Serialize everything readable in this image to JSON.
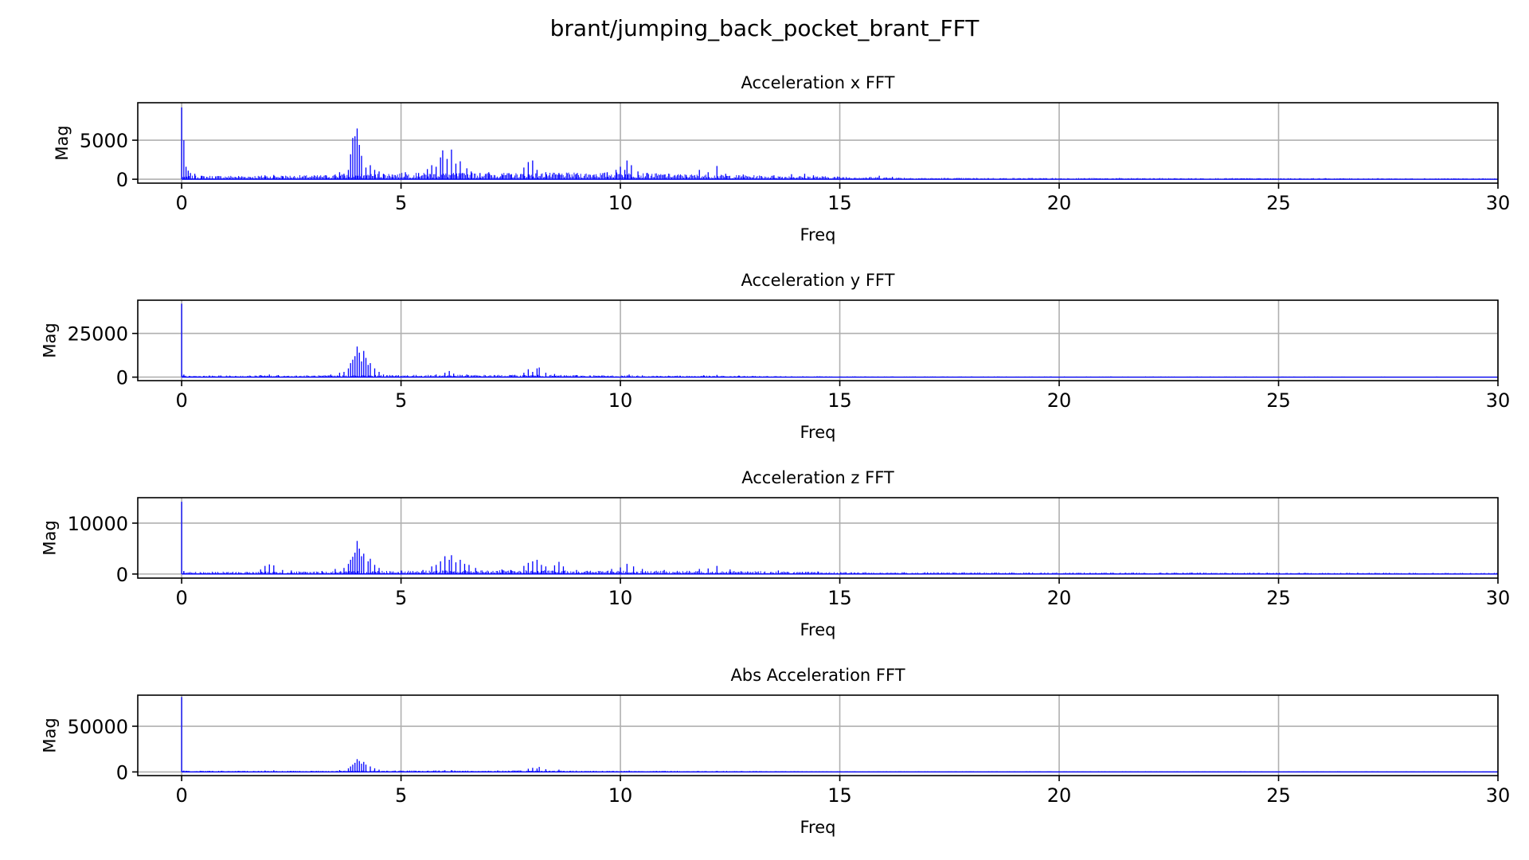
{
  "figure": {
    "suptitle": "brant/jumping_back_pocket_brant_FFT"
  },
  "style": {
    "bar_color": "#0000ff",
    "grid_color": "#b0b0b0",
    "axes_color": "#000000"
  },
  "chart_data": [
    {
      "type": "bar",
      "title": "Acceleration x FFT",
      "xlabel": "Freq",
      "ylabel": "Mag",
      "xlim": [
        -1,
        30
      ],
      "ylim": [
        -500,
        9800
      ],
      "xticks": [
        0,
        5,
        10,
        15,
        20,
        25,
        30
      ],
      "yticks": [
        0,
        5000
      ],
      "grid": true,
      "peaks": [
        [
          0.0,
          9200
        ],
        [
          0.05,
          5000
        ],
        [
          0.1,
          1600
        ],
        [
          0.15,
          1100
        ],
        [
          0.2,
          800
        ],
        [
          0.3,
          700
        ],
        [
          0.45,
          450
        ],
        [
          1.9,
          500
        ],
        [
          2.1,
          550
        ],
        [
          2.3,
          420
        ],
        [
          3.3,
          450
        ],
        [
          3.5,
          600
        ],
        [
          3.6,
          900
        ],
        [
          3.7,
          700
        ],
        [
          3.8,
          1200
        ],
        [
          3.85,
          3200
        ],
        [
          3.9,
          5300
        ],
        [
          3.95,
          5500
        ],
        [
          4.0,
          6500
        ],
        [
          4.05,
          4400
        ],
        [
          4.1,
          3000
        ],
        [
          4.2,
          1500
        ],
        [
          4.3,
          1800
        ],
        [
          4.4,
          1200
        ],
        [
          4.5,
          1000
        ],
        [
          4.6,
          700
        ],
        [
          4.8,
          600
        ],
        [
          5.1,
          900
        ],
        [
          5.4,
          800
        ],
        [
          5.6,
          1300
        ],
        [
          5.7,
          1800
        ],
        [
          5.8,
          1600
        ],
        [
          5.9,
          2800
        ],
        [
          5.95,
          3700
        ],
        [
          6.05,
          2600
        ],
        [
          6.15,
          3800
        ],
        [
          6.25,
          2000
        ],
        [
          6.35,
          2300
        ],
        [
          6.5,
          1400
        ],
        [
          6.6,
          1000
        ],
        [
          6.8,
          800
        ],
        [
          7.0,
          900
        ],
        [
          7.3,
          700
        ],
        [
          7.5,
          600
        ],
        [
          7.8,
          1500
        ],
        [
          7.9,
          2200
        ],
        [
          8.0,
          2400
        ],
        [
          8.1,
          1200
        ],
        [
          8.3,
          900
        ],
        [
          8.6,
          800
        ],
        [
          9.0,
          700
        ],
        [
          9.4,
          600
        ],
        [
          9.7,
          900
        ],
        [
          9.9,
          1200
        ],
        [
          10.0,
          1600
        ],
        [
          10.1,
          1200
        ],
        [
          10.15,
          2400
        ],
        [
          10.25,
          1800
        ],
        [
          10.4,
          1000
        ],
        [
          10.6,
          800
        ],
        [
          11.0,
          600
        ],
        [
          11.5,
          550
        ],
        [
          11.8,
          1200
        ],
        [
          12.0,
          900
        ],
        [
          12.2,
          1700
        ],
        [
          12.4,
          700
        ],
        [
          12.8,
          600
        ],
        [
          13.5,
          500
        ],
        [
          13.9,
          650
        ],
        [
          14.2,
          700
        ],
        [
          14.4,
          500
        ],
        [
          15.9,
          450
        ],
        [
          16.2,
          300
        ]
      ],
      "noise_floor": [
        [
          0,
          300
        ],
        [
          3,
          350
        ],
        [
          5,
          550
        ],
        [
          8,
          550
        ],
        [
          10,
          600
        ],
        [
          12,
          400
        ],
        [
          15,
          250
        ],
        [
          17,
          120
        ],
        [
          30,
          80
        ]
      ]
    },
    {
      "type": "bar",
      "title": "Acceleration y FFT",
      "xlabel": "Freq",
      "ylabel": "Mag",
      "xlim": [
        -1,
        30
      ],
      "ylim": [
        -2000,
        44000
      ],
      "xticks": [
        0,
        5,
        10,
        15,
        20,
        25,
        30
      ],
      "yticks": [
        0,
        25000
      ],
      "grid": true,
      "peaks": [
        [
          0.0,
          42000
        ],
        [
          0.05,
          1500
        ],
        [
          1.8,
          1200
        ],
        [
          2.0,
          1500
        ],
        [
          2.2,
          1200
        ],
        [
          3.4,
          1500
        ],
        [
          3.6,
          2500
        ],
        [
          3.7,
          3000
        ],
        [
          3.8,
          5000
        ],
        [
          3.85,
          8000
        ],
        [
          3.9,
          10000
        ],
        [
          3.95,
          12000
        ],
        [
          4.0,
          17500
        ],
        [
          4.05,
          14000
        ],
        [
          4.1,
          9000
        ],
        [
          4.15,
          15000
        ],
        [
          4.2,
          11000
        ],
        [
          4.25,
          7000
        ],
        [
          4.3,
          8000
        ],
        [
          4.4,
          5000
        ],
        [
          4.5,
          3000
        ],
        [
          4.6,
          1500
        ],
        [
          5.8,
          1500
        ],
        [
          6.0,
          2500
        ],
        [
          6.1,
          3500
        ],
        [
          6.2,
          2000
        ],
        [
          6.5,
          1500
        ],
        [
          7.5,
          1200
        ],
        [
          7.8,
          2500
        ],
        [
          7.9,
          4500
        ],
        [
          8.0,
          3000
        ],
        [
          8.1,
          5000
        ],
        [
          8.15,
          5500
        ],
        [
          8.3,
          2500
        ],
        [
          8.5,
          1800
        ],
        [
          9.0,
          1200
        ],
        [
          10.2,
          1500
        ],
        [
          10.5,
          1000
        ],
        [
          11.9,
          1100
        ],
        [
          12.2,
          1300
        ],
        [
          12.7,
          900
        ]
      ],
      "noise_floor": [
        [
          0,
          600
        ],
        [
          3,
          700
        ],
        [
          5,
          900
        ],
        [
          8,
          900
        ],
        [
          10,
          700
        ],
        [
          13,
          500
        ],
        [
          15,
          300
        ],
        [
          30,
          200
        ]
      ]
    },
    {
      "type": "bar",
      "title": "Acceleration z FFT",
      "xlabel": "Freq",
      "ylabel": "Mag",
      "xlim": [
        -1,
        30
      ],
      "ylim": [
        -800,
        15000
      ],
      "xticks": [
        0,
        5,
        10,
        15,
        20,
        25,
        30
      ],
      "yticks": [
        0,
        10000
      ],
      "grid": true,
      "peaks": [
        [
          0.0,
          14200
        ],
        [
          0.05,
          600
        ],
        [
          1.8,
          900
        ],
        [
          1.9,
          1600
        ],
        [
          2.0,
          1900
        ],
        [
          2.1,
          1700
        ],
        [
          2.3,
          800
        ],
        [
          2.5,
          700
        ],
        [
          3.2,
          600
        ],
        [
          3.5,
          1000
        ],
        [
          3.7,
          1200
        ],
        [
          3.8,
          2000
        ],
        [
          3.85,
          2800
        ],
        [
          3.9,
          3400
        ],
        [
          3.95,
          4200
        ],
        [
          4.0,
          6500
        ],
        [
          4.05,
          5000
        ],
        [
          4.1,
          3500
        ],
        [
          4.15,
          4000
        ],
        [
          4.25,
          2500
        ],
        [
          4.3,
          3000
        ],
        [
          4.4,
          1800
        ],
        [
          4.5,
          1200
        ],
        [
          5.5,
          800
        ],
        [
          5.7,
          1500
        ],
        [
          5.8,
          1800
        ],
        [
          5.9,
          2500
        ],
        [
          6.0,
          3500
        ],
        [
          6.1,
          2800
        ],
        [
          6.15,
          3700
        ],
        [
          6.25,
          2300
        ],
        [
          6.35,
          2800
        ],
        [
          6.45,
          2000
        ],
        [
          6.55,
          1800
        ],
        [
          6.7,
          1200
        ],
        [
          7.3,
          900
        ],
        [
          7.5,
          800
        ],
        [
          7.8,
          1600
        ],
        [
          7.9,
          2200
        ],
        [
          8.0,
          2500
        ],
        [
          8.1,
          2800
        ],
        [
          8.2,
          1800
        ],
        [
          8.3,
          1500
        ],
        [
          8.5,
          1700
        ],
        [
          8.6,
          2400
        ],
        [
          8.7,
          1500
        ],
        [
          9.0,
          800
        ],
        [
          9.8,
          1000
        ],
        [
          10.0,
          1300
        ],
        [
          10.15,
          2000
        ],
        [
          10.3,
          1500
        ],
        [
          10.5,
          1000
        ],
        [
          11.0,
          800
        ],
        [
          11.8,
          1000
        ],
        [
          12.0,
          1100
        ],
        [
          12.2,
          1600
        ],
        [
          12.5,
          900
        ],
        [
          13.6,
          700
        ],
        [
          14.5,
          500
        ]
      ],
      "noise_floor": [
        [
          0,
          300
        ],
        [
          3,
          350
        ],
        [
          5,
          500
        ],
        [
          8,
          500
        ],
        [
          10,
          450
        ],
        [
          13,
          400
        ],
        [
          15,
          250
        ],
        [
          30,
          150
        ]
      ]
    },
    {
      "type": "bar",
      "title": "Abs Acceleration FFT",
      "xlabel": "Freq",
      "ylabel": "Mag",
      "xlim": [
        -1,
        30
      ],
      "ylim": [
        -4000,
        84000
      ],
      "xticks": [
        0,
        5,
        10,
        15,
        20,
        25,
        30
      ],
      "yticks": [
        0,
        50000
      ],
      "grid": true,
      "peaks": [
        [
          0.0,
          82000
        ],
        [
          0.05,
          1500
        ],
        [
          1.9,
          1500
        ],
        [
          2.1,
          1800
        ],
        [
          3.6,
          2000
        ],
        [
          3.8,
          4000
        ],
        [
          3.85,
          6000
        ],
        [
          3.9,
          8000
        ],
        [
          3.95,
          10000
        ],
        [
          4.0,
          14000
        ],
        [
          4.05,
          12000
        ],
        [
          4.1,
          9000
        ],
        [
          4.15,
          11000
        ],
        [
          4.2,
          8000
        ],
        [
          4.3,
          6000
        ],
        [
          4.4,
          4000
        ],
        [
          4.5,
          2500
        ],
        [
          6.0,
          1800
        ],
        [
          6.15,
          2000
        ],
        [
          7.9,
          3500
        ],
        [
          8.0,
          4500
        ],
        [
          8.1,
          3800
        ],
        [
          8.15,
          5500
        ],
        [
          8.3,
          3000
        ],
        [
          8.6,
          2500
        ],
        [
          10.2,
          1500
        ],
        [
          12.2,
          1200
        ]
      ],
      "noise_floor": [
        [
          0,
          900
        ],
        [
          3,
          900
        ],
        [
          5,
          1100
        ],
        [
          8,
          1100
        ],
        [
          10,
          900
        ],
        [
          13,
          700
        ],
        [
          15,
          500
        ],
        [
          30,
          400
        ]
      ]
    }
  ]
}
